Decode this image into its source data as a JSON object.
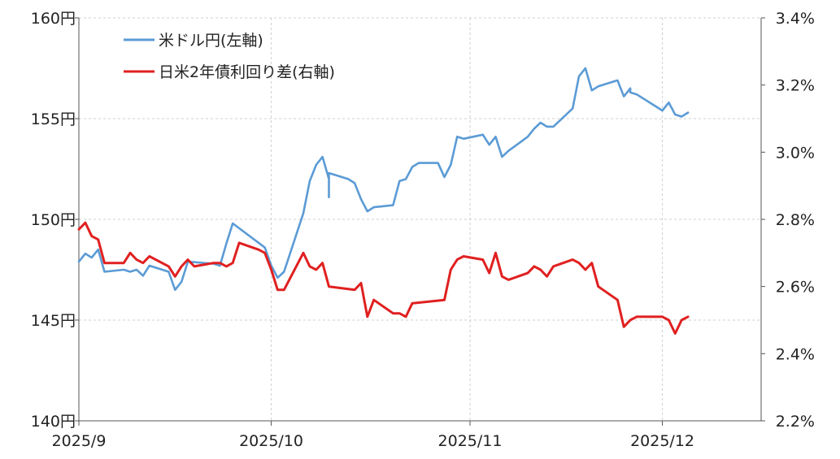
{
  "chart_data": {
    "type": "line",
    "x_ticks": [
      "2025/9",
      "2025/10",
      "2025/11",
      "2025/12"
    ],
    "left_axis": {
      "ylim": [
        140,
        160
      ],
      "ticks": [
        160,
        155,
        150,
        145,
        140
      ],
      "tick_labels": [
        "160円",
        "155円",
        "150円",
        "145円",
        "140円"
      ]
    },
    "right_axis": {
      "ylim": [
        2.2,
        3.4
      ],
      "ticks": [
        3.4,
        3.2,
        3.0,
        2.8,
        2.6,
        2.4,
        2.2
      ],
      "tick_labels": [
        "3.4%",
        "3.2%",
        "3.0%",
        "2.8%",
        "2.6%",
        "2.4%",
        "2.2%"
      ]
    },
    "grid": true,
    "legend_position": "top-left",
    "series": [
      {
        "name": "米ドル円(左軸)",
        "axis": "left",
        "color": "#5b9bd5",
        "points": [
          [
            "2025-09-01",
            147.9
          ],
          [
            "2025-09-02",
            148.3
          ],
          [
            "2025-09-03",
            148.1
          ],
          [
            "2025-09-04",
            148.5
          ],
          [
            "2025-09-05",
            147.4
          ],
          [
            "2025-09-08",
            147.5
          ],
          [
            "2025-09-09",
            147.4
          ],
          [
            "2025-09-10",
            147.5
          ],
          [
            "2025-09-11",
            147.2
          ],
          [
            "2025-09-12",
            147.7
          ],
          [
            "2025-09-15",
            147.4
          ],
          [
            "2025-09-16",
            146.5
          ],
          [
            "2025-09-17",
            146.9
          ],
          [
            "2025-09-18",
            147.9
          ],
          [
            "2025-09-22",
            147.8
          ],
          [
            "2025-09-23",
            147.7
          ],
          [
            "2025-09-24",
            148.8
          ],
          [
            "2025-09-25",
            149.8
          ],
          [
            "2025-09-30",
            148.6
          ],
          [
            "2025-10-01",
            147.7
          ],
          [
            "2025-10-02",
            147.1
          ],
          [
            "2025-10-03",
            147.4
          ],
          [
            "2025-10-06",
            150.3
          ],
          [
            "2025-10-07",
            151.9
          ],
          [
            "2025-10-08",
            152.7
          ],
          [
            "2025-10-09",
            153.1
          ],
          [
            "2025-10-10",
            152.0
          ],
          [
            "2025-10-10",
            151.1
          ],
          [
            "2025-10-10",
            152.3
          ],
          [
            "2025-10-13",
            152.0
          ],
          [
            "2025-10-14",
            151.8
          ],
          [
            "2025-10-15",
            151.0
          ],
          [
            "2025-10-16",
            150.4
          ],
          [
            "2025-10-17",
            150.6
          ],
          [
            "2025-10-20",
            150.7
          ],
          [
            "2025-10-21",
            151.9
          ],
          [
            "2025-10-22",
            152.0
          ],
          [
            "2025-10-23",
            152.6
          ],
          [
            "2025-10-24",
            152.8
          ],
          [
            "2025-10-27",
            152.8
          ],
          [
            "2025-10-28",
            152.1
          ],
          [
            "2025-10-29",
            152.7
          ],
          [
            "2025-10-30",
            154.1
          ],
          [
            "2025-10-31",
            154.0
          ],
          [
            "2025-11-03",
            154.2
          ],
          [
            "2025-11-04",
            153.7
          ],
          [
            "2025-11-05",
            154.1
          ],
          [
            "2025-11-06",
            153.1
          ],
          [
            "2025-11-07",
            153.4
          ],
          [
            "2025-11-10",
            154.1
          ],
          [
            "2025-11-11",
            154.5
          ],
          [
            "2025-11-12",
            154.8
          ],
          [
            "2025-11-13",
            154.6
          ],
          [
            "2025-11-14",
            154.6
          ],
          [
            "2025-11-17",
            155.5
          ],
          [
            "2025-11-18",
            157.1
          ],
          [
            "2025-11-19",
            157.5
          ],
          [
            "2025-11-20",
            156.4
          ],
          [
            "2025-11-21",
            156.6
          ],
          [
            "2025-11-24",
            156.9
          ],
          [
            "2025-11-25",
            156.1
          ],
          [
            "2025-11-26",
            156.5
          ],
          [
            "2025-11-26",
            156.3
          ],
          [
            "2025-11-27",
            156.2
          ],
          [
            "2025-12-01",
            155.4
          ],
          [
            "2025-12-02",
            155.8
          ],
          [
            "2025-12-03",
            155.2
          ],
          [
            "2025-12-04",
            155.1
          ],
          [
            "2025-12-05",
            155.3
          ]
        ]
      },
      {
        "name": "日米2年債利回り差(右軸)",
        "axis": "right",
        "color": "#e02020",
        "points": [
          [
            "2025-09-01",
            2.77
          ],
          [
            "2025-09-02",
            2.79
          ],
          [
            "2025-09-03",
            2.75
          ],
          [
            "2025-09-04",
            2.74
          ],
          [
            "2025-09-05",
            2.67
          ],
          [
            "2025-09-08",
            2.67
          ],
          [
            "2025-09-09",
            2.7
          ],
          [
            "2025-09-10",
            2.68
          ],
          [
            "2025-09-11",
            2.67
          ],
          [
            "2025-09-12",
            2.69
          ],
          [
            "2025-09-15",
            2.66
          ],
          [
            "2025-09-16",
            2.63
          ],
          [
            "2025-09-17",
            2.66
          ],
          [
            "2025-09-18",
            2.68
          ],
          [
            "2025-09-19",
            2.66
          ],
          [
            "2025-09-22",
            2.67
          ],
          [
            "2025-09-23",
            2.67
          ],
          [
            "2025-09-24",
            2.66
          ],
          [
            "2025-09-25",
            2.67
          ],
          [
            "2025-09-26",
            2.73
          ],
          [
            "2025-09-29",
            2.71
          ],
          [
            "2025-09-30",
            2.7
          ],
          [
            "2025-10-01",
            2.65
          ],
          [
            "2025-10-02",
            2.59
          ],
          [
            "2025-10-03",
            2.59
          ],
          [
            "2025-10-06",
            2.7
          ],
          [
            "2025-10-07",
            2.66
          ],
          [
            "2025-10-08",
            2.65
          ],
          [
            "2025-10-09",
            2.67
          ],
          [
            "2025-10-10",
            2.6
          ],
          [
            "2025-10-14",
            2.59
          ],
          [
            "2025-10-15",
            2.61
          ],
          [
            "2025-10-16",
            2.51
          ],
          [
            "2025-10-17",
            2.56
          ],
          [
            "2025-10-20",
            2.52
          ],
          [
            "2025-10-21",
            2.52
          ],
          [
            "2025-10-22",
            2.51
          ],
          [
            "2025-10-23",
            2.55
          ],
          [
            "2025-10-28",
            2.56
          ],
          [
            "2025-10-29",
            2.65
          ],
          [
            "2025-10-30",
            2.68
          ],
          [
            "2025-10-31",
            2.69
          ],
          [
            "2025-11-03",
            2.68
          ],
          [
            "2025-11-04",
            2.64
          ],
          [
            "2025-11-05",
            2.7
          ],
          [
            "2025-11-06",
            2.63
          ],
          [
            "2025-11-07",
            2.62
          ],
          [
            "2025-11-10",
            2.64
          ],
          [
            "2025-11-11",
            2.66
          ],
          [
            "2025-11-12",
            2.65
          ],
          [
            "2025-11-13",
            2.63
          ],
          [
            "2025-11-14",
            2.66
          ],
          [
            "2025-11-17",
            2.68
          ],
          [
            "2025-11-18",
            2.67
          ],
          [
            "2025-11-19",
            2.65
          ],
          [
            "2025-11-20",
            2.67
          ],
          [
            "2025-11-21",
            2.6
          ],
          [
            "2025-11-24",
            2.56
          ],
          [
            "2025-11-25",
            2.48
          ],
          [
            "2025-11-26",
            2.5
          ],
          [
            "2025-11-27",
            2.51
          ],
          [
            "2025-12-01",
            2.51
          ],
          [
            "2025-12-02",
            2.5
          ],
          [
            "2025-12-03",
            2.46
          ],
          [
            "2025-12-04",
            2.5
          ],
          [
            "2025-12-05",
            2.51
          ]
        ]
      }
    ]
  }
}
